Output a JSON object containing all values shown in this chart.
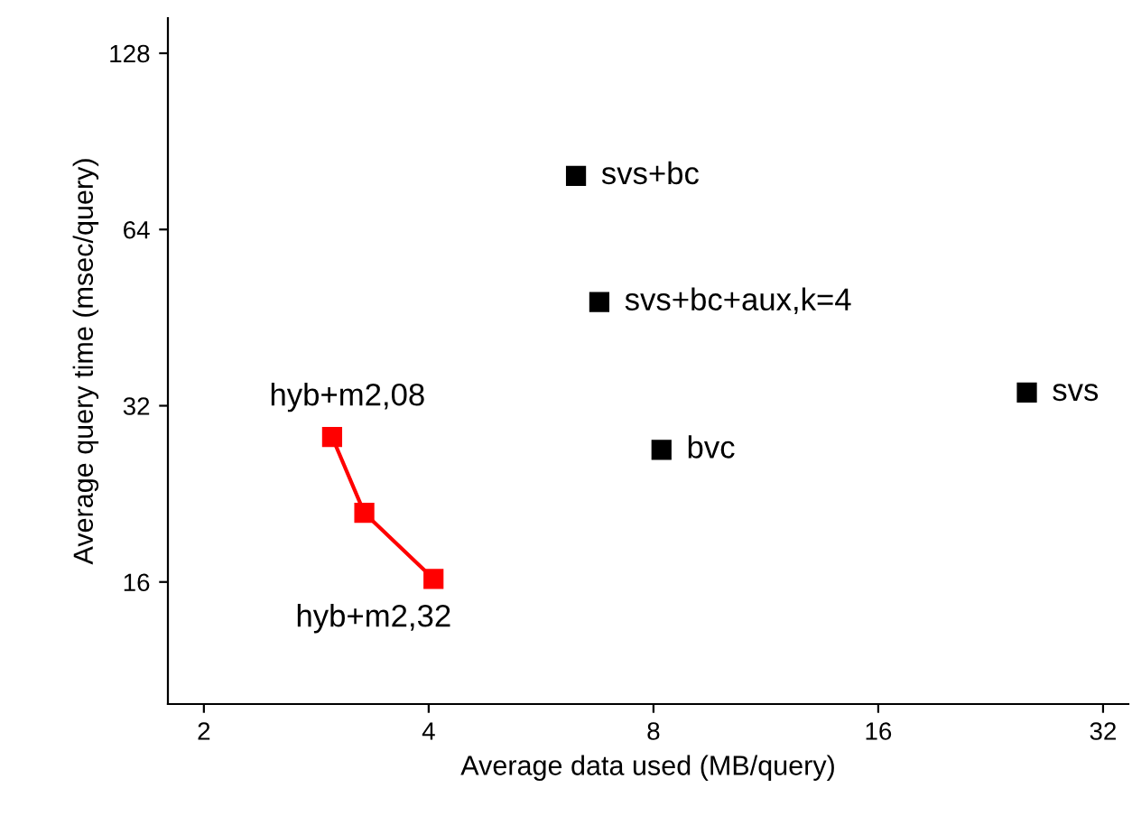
{
  "chart_data": {
    "type": "scatter",
    "xlabel": "Average data used (MB/query)",
    "ylabel": "Average query time (msec/query)",
    "log": "xy",
    "marker": "square",
    "grid": false,
    "legend": false,
    "xlim": [
      1.79,
      34.6
    ],
    "ylim": [
      9.9,
      147
    ],
    "xticks": [
      2,
      4,
      8,
      16,
      32
    ],
    "yticks": [
      16,
      32,
      64,
      128
    ],
    "series": [
      {
        "color": "#000000",
        "x": [
          6.3,
          6.77,
          25.3,
          8.2
        ],
        "values": [
          79,
          48.1,
          33.7,
          26.9
        ]
      },
      {
        "type": "line",
        "color": "#ff0000",
        "x": [
          2.97,
          3.28,
          4.06
        ],
        "values": [
          28.3,
          21.0,
          16.2
        ]
      }
    ],
    "annotations": [
      {
        "text": "svs+bc",
        "x": 6.3,
        "y": 79
      },
      {
        "text": "svs+bc+aux,k=4",
        "x": 6.77,
        "y": 48.1
      },
      {
        "text": "svs",
        "x": 25.3,
        "y": 33.7
      },
      {
        "text": "bvc",
        "x": 8.2,
        "y": 26.9
      },
      {
        "text": "hyb+m2,08",
        "x": 2.97,
        "y": 28.3
      },
      {
        "text": "hyb+m2,32",
        "x": 4.06,
        "y": 16.2
      }
    ]
  }
}
